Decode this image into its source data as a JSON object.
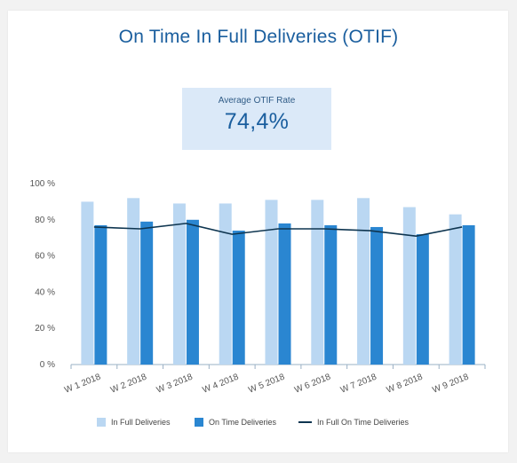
{
  "title": "On Time In Full Deliveries (OTIF)",
  "kpi": {
    "label": "Average OTIF Rate",
    "value": "74,4%"
  },
  "colors": {
    "in_full": "#bad7f2",
    "on_time": "#2a86d1",
    "otif_line": "#0e3550",
    "axis": "#9ab0c4",
    "title": "#1a5e9e"
  },
  "chart_data": {
    "type": "bar",
    "categories": [
      "W 1 2018",
      "W 2 2018",
      "W 3 2018",
      "W 4 2018",
      "W 5 2018",
      "W 6 2018",
      "W 7 2018",
      "W 8 2018",
      "W 9 2018"
    ],
    "series": [
      {
        "name": "In Full Deliveries",
        "type": "bar",
        "values": [
          90,
          92,
          89,
          89,
          91,
          91,
          92,
          87,
          83
        ]
      },
      {
        "name": "On Time Deliveries",
        "type": "bar",
        "values": [
          77,
          79,
          80,
          74,
          78,
          77,
          76,
          72,
          77
        ]
      },
      {
        "name": "In Full On Time Deliveries",
        "type": "line",
        "values": [
          76,
          75,
          78,
          72,
          75,
          75,
          74,
          71,
          76
        ]
      }
    ],
    "yticks": [
      "0 %",
      "20 %",
      "40 %",
      "60 %",
      "80 %",
      "100 %"
    ],
    "ylim": [
      0,
      100
    ],
    "grid": false,
    "legend_position": "bottom"
  }
}
